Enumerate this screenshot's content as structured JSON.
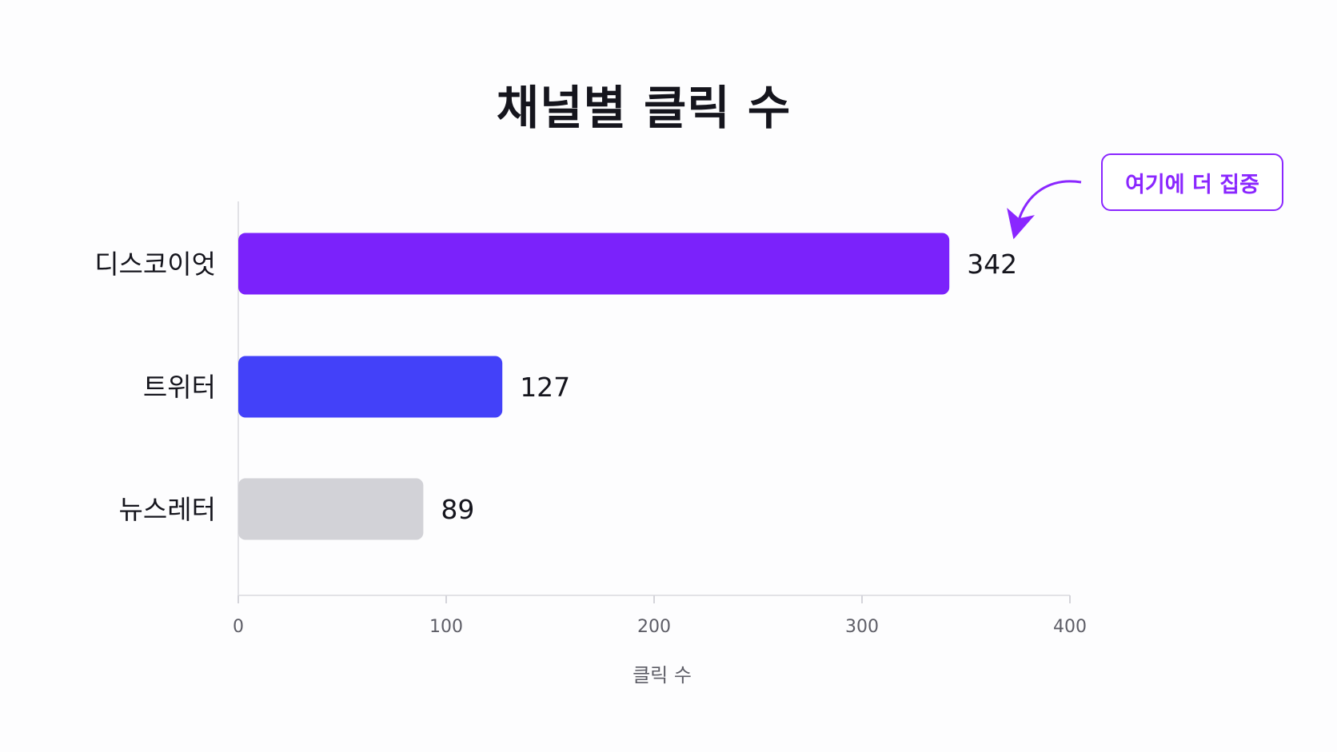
{
  "chart_data": {
    "type": "bar",
    "orientation": "horizontal",
    "title": "채널별 클릭 수",
    "xlabel": "클릭 수",
    "ylabel": "",
    "xlim": [
      0,
      400
    ],
    "xticks": [
      0,
      100,
      200,
      300,
      400
    ],
    "grid": false,
    "categories": [
      "디스코이엇",
      "트위터",
      "뉴스레터"
    ],
    "values": [
      342,
      127,
      89
    ],
    "colors": [
      "#7b22fb",
      "#4341f9",
      "#d2d2d7"
    ],
    "annotation": {
      "text": "여기에 더 집중",
      "target_category": "디스코이엇",
      "color": "#8a26ff"
    }
  }
}
